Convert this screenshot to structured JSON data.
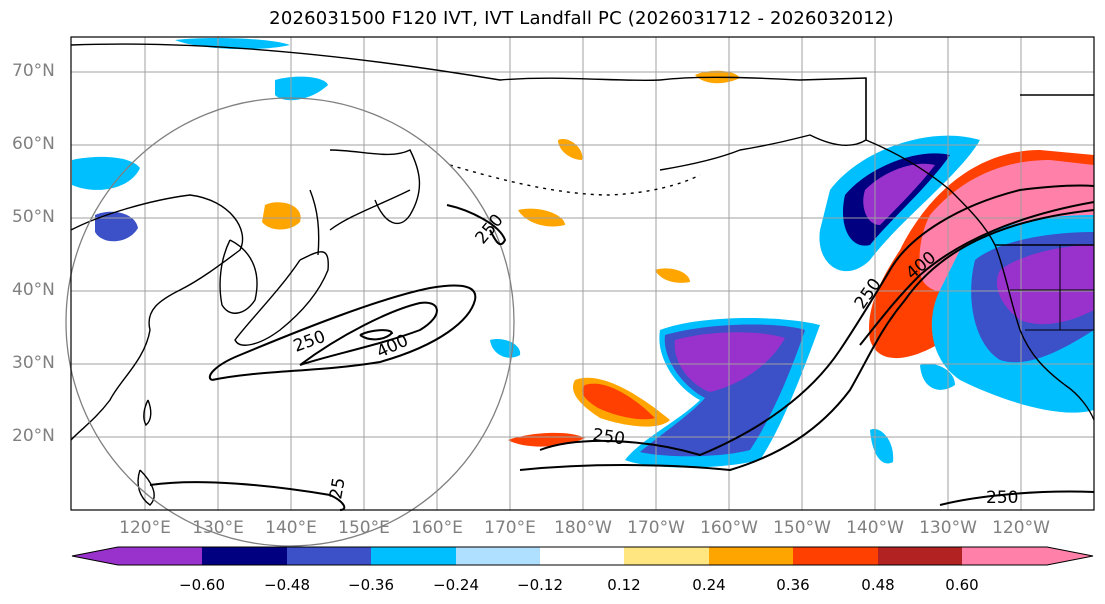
{
  "title": "2026031500 F120 IVT, IVT Landfall PC (2026031712 - 2026032012)",
  "lat_labels": [
    "70°N",
    "60°N",
    "50°N",
    "40°N",
    "30°N",
    "20°N"
  ],
  "lon_labels": [
    "120°E",
    "130°E",
    "140°E",
    "150°E",
    "160°E",
    "170°E",
    "180°W",
    "170°W",
    "160°W",
    "150°W",
    "140°W",
    "130°W",
    "120°W"
  ],
  "contour_labels": [
    "250",
    "400",
    "250",
    "250",
    "400",
    "250",
    "250",
    "25"
  ],
  "colorbar": {
    "ticks": [
      "−0.60",
      "−0.48",
      "−0.36",
      "−0.24",
      "−0.12",
      "0.12",
      "0.24",
      "0.36",
      "0.48",
      "0.60"
    ],
    "colors": [
      "#9932cc",
      "#000080",
      "#3c50c8",
      "#00bfff",
      "#b0e0ff",
      "#ffffff",
      "#ffe680",
      "#ffa500",
      "#ff4000",
      "#b22222",
      "#ff80a8"
    ]
  },
  "colors": {
    "coast": "#000000",
    "grid": "#a0a0a0",
    "circle": "#808080"
  }
}
